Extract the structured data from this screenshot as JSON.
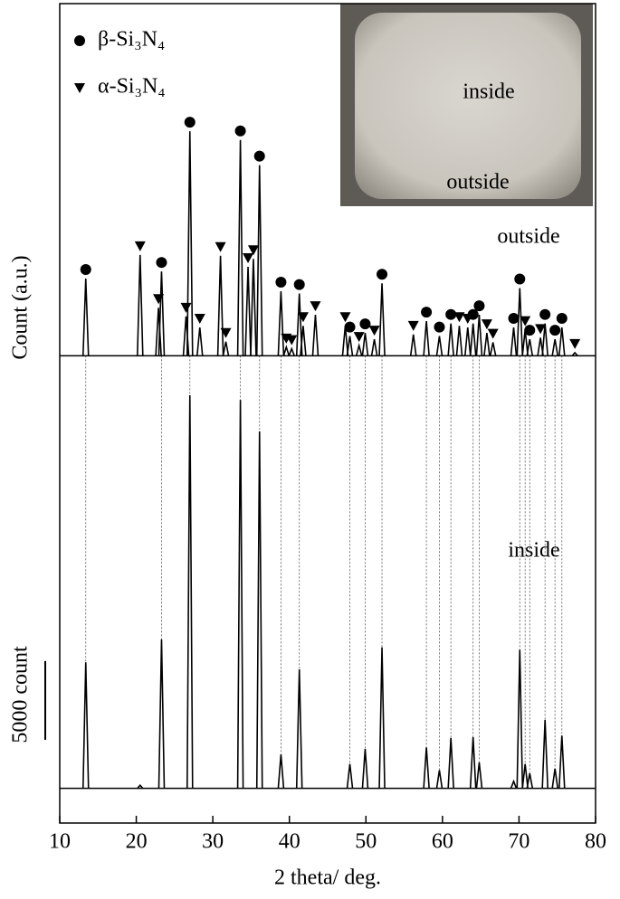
{
  "chart_data": {
    "type": "peaks",
    "xlabel": "2 theta/ deg.",
    "ylabel": "Count (a.u.)",
    "xlim": [
      10,
      80
    ],
    "xticks": [
      10,
      20,
      30,
      40,
      50,
      60,
      70,
      80
    ],
    "ylim": [
      0,
      52000
    ],
    "scale_bar": {
      "value": 5000,
      "label": "5000 count"
    },
    "legend": [
      {
        "name": "β-Si₃N₄",
        "marker": "circle"
      },
      {
        "name": "α-Si₃N₄",
        "marker": "triangle"
      }
    ],
    "series": [
      {
        "name": "outside",
        "color": "#000000",
        "baseline": 29650,
        "x": [
          13.4,
          20.5,
          22.9,
          23.3,
          26.5,
          27.0,
          28.3,
          31.0,
          31.7,
          33.6,
          34.6,
          35.3,
          36.1,
          38.9,
          39.6,
          40.3,
          41.3,
          41.8,
          43.4,
          47.3,
          47.9,
          49.1,
          49.9,
          51.1,
          52.1,
          56.2,
          57.9,
          59.6,
          61.1,
          62.2,
          63.3,
          64.0,
          64.8,
          65.8,
          66.6,
          69.3,
          70.1,
          70.8,
          71.4,
          72.8,
          73.4,
          74.7,
          75.6,
          77.3
        ],
        "values": [
          34550,
          36050,
          32700,
          35000,
          32150,
          43900,
          31450,
          36000,
          30550,
          43350,
          35300,
          35800,
          41750,
          33750,
          30200,
          30100,
          33600,
          31550,
          32250,
          31550,
          30900,
          30300,
          31100,
          30700,
          34250,
          31000,
          31850,
          30900,
          31700,
          31550,
          31450,
          31700,
          32250,
          31100,
          30500,
          31450,
          33950,
          31300,
          30700,
          30800,
          31700,
          30700,
          31450,
          29850
        ],
        "markers": [
          "circle",
          "triangle",
          "triangle",
          "circle",
          "triangle",
          "circle",
          "triangle",
          "triangle",
          "triangle",
          "circle",
          "triangle",
          "triangle",
          "circle",
          "circle",
          "triangle",
          "triangle",
          "circle",
          "triangle",
          "triangle",
          "triangle",
          "circle",
          "triangle",
          "circle",
          "triangle",
          "circle",
          "triangle",
          "circle",
          "circle",
          "circle",
          "triangle",
          "triangle",
          "circle",
          "circle",
          "triangle",
          "triangle",
          "circle",
          "circle",
          "triangle",
          "circle",
          "triangle",
          "circle",
          "circle",
          "circle",
          "triangle"
        ]
      },
      {
        "name": "inside",
        "color": "#000000",
        "baseline": 2200,
        "x": [
          13.4,
          20.5,
          23.3,
          27.0,
          33.6,
          36.1,
          38.9,
          41.3,
          47.9,
          49.9,
          52.1,
          57.9,
          59.6,
          61.1,
          64.0,
          64.8,
          69.3,
          70.1,
          70.8,
          71.4,
          73.4,
          74.7,
          75.6
        ],
        "values": [
          10200,
          2400,
          11650,
          27150,
          26850,
          24850,
          4350,
          9750,
          3750,
          4700,
          11150,
          4800,
          3350,
          5400,
          5450,
          3850,
          2650,
          11000,
          3750,
          3150,
          6550,
          3450,
          5550
        ]
      }
    ],
    "inset": {
      "labels": [
        "inside",
        "outside"
      ]
    }
  }
}
